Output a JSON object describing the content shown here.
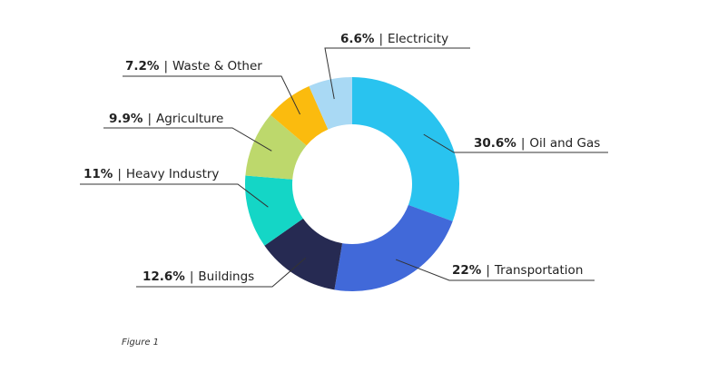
{
  "chart_data": {
    "type": "donut",
    "categories": [
      "Oil and Gas",
      "Transportation",
      "Buildings",
      "Heavy Industry",
      "Agriculture",
      "Waste & Other",
      "Electricity"
    ],
    "values": [
      30.6,
      22,
      12.6,
      11,
      9.9,
      7.2,
      6.6
    ],
    "value_labels": [
      "30.6%",
      "22%",
      "12.6%",
      "11%",
      "9.9%",
      "7.2%",
      "6.6%"
    ],
    "separator": "|",
    "colors": [
      "#29c3ef",
      "#4169d9",
      "#262a52",
      "#14d6c6",
      "#bdd86c",
      "#fbbb0e",
      "#a9d9f4"
    ],
    "caption": "Figure 1"
  }
}
